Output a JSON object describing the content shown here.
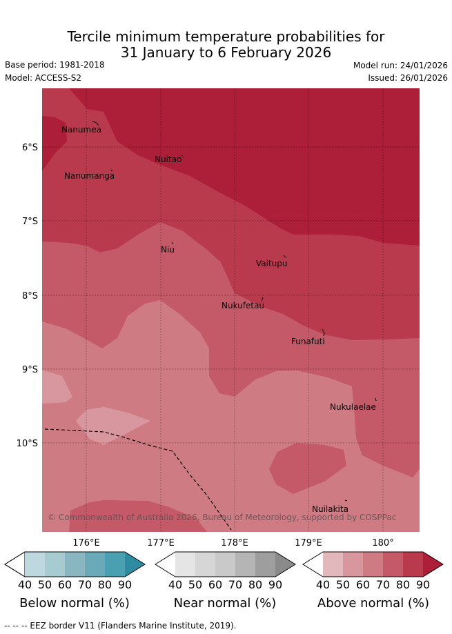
{
  "header": {
    "title_line1": "Tercile minimum temperature probabilities for",
    "title_line2": "31 January to 6 February 2026",
    "base_period": "Base period: 1981-2018",
    "model": "Model: ACCESS-S2",
    "model_run": "Model run: 24/01/2026",
    "issued": "Issued: 26/01/2026"
  },
  "map": {
    "lat_ticks": [
      "6°S",
      "7°S",
      "8°S",
      "9°S",
      "10°S"
    ],
    "lon_ticks": [
      "176°E",
      "177°E",
      "178°E",
      "179°E",
      "180°"
    ],
    "islands": [
      "Nanumea",
      "Nuitao",
      "Nanumanga",
      "Niu",
      "Vaitupu",
      "Nukufetau",
      "Funafuti",
      "Nukulaelae",
      "Nuilakita"
    ],
    "copyright": "© Commonwealth of Australia 2026, Bureau of Meteorology, supported by COSPPac"
  },
  "colorbars": [
    {
      "label": "Below normal (%)",
      "ticks": [
        "40",
        "50",
        "60",
        "70",
        "80",
        "90"
      ],
      "colors": [
        "#bdd8df",
        "#a6cbd1",
        "#89b6c1",
        "#6aa9b8",
        "#4aa0b0",
        "#2e8ba0"
      ]
    },
    {
      "label": "Near normal (%)",
      "ticks": [
        "40",
        "50",
        "60",
        "70",
        "80",
        "90"
      ],
      "colors": [
        "#e5e5e5",
        "#d6d6d6",
        "#c9c9c9",
        "#b5b5b5",
        "#9e9e9e",
        "#8a8a8a"
      ]
    },
    {
      "label": "Above normal (%)",
      "ticks": [
        "40",
        "50",
        "60",
        "70",
        "80",
        "90"
      ],
      "colors": [
        "#e3b8bd",
        "#d8979e",
        "#cf7b83",
        "#c45a68",
        "#b83a4c",
        "#ad1e38"
      ]
    }
  ],
  "footer": {
    "eez_note": "-- -- -- EEZ border V11 (Flanders Marine Institute, 2019)."
  }
}
